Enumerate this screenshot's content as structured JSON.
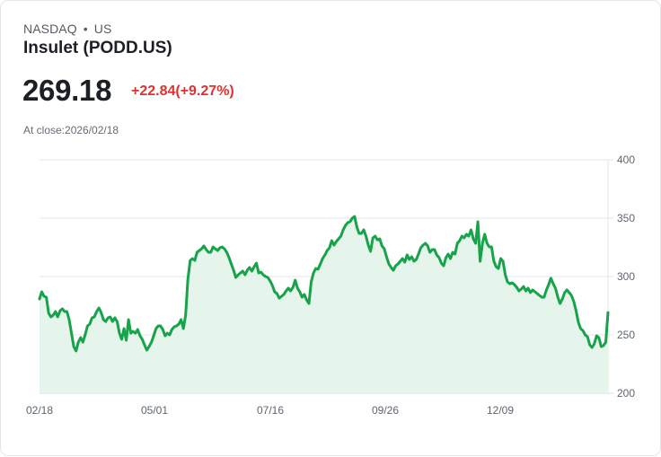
{
  "header": {
    "exchange": "NASDAQ",
    "separator": "•",
    "region": "US",
    "title": "Insulet (PODD.US)",
    "price": "269.18",
    "change": "+22.84(+9.27%)",
    "close_label": "At close:2026/02/18"
  },
  "colors": {
    "line": "#17a34a",
    "fill": "#e6f5ec",
    "change": "#e03131",
    "grid": "#e2e4e7"
  },
  "chart_data": {
    "type": "area",
    "title": "Insulet (PODD.US)",
    "xlabel": "",
    "ylabel": "",
    "ylim": [
      200,
      400
    ],
    "yticks": [
      200,
      250,
      300,
      350,
      400
    ],
    "xticks": [
      "02/18",
      "05/01",
      "07/16",
      "09/26",
      "12/09"
    ],
    "grid": true,
    "legend": "none",
    "values": [
      280.8,
      286.9,
      283.1,
      282.3,
      268.5,
      265.4,
      266.9,
      270,
      265.4,
      270.8,
      272.3,
      270,
      270,
      263.1,
      251.5,
      240,
      236.2,
      243.8,
      247.7,
      243.8,
      250,
      257.7,
      259.2,
      264.6,
      265.4,
      270,
      273.1,
      269.2,
      263.1,
      261.5,
      264.6,
      265.4,
      261.5,
      264.6,
      261.5,
      251.5,
      246.2,
      255.4,
      245.4,
      263.1,
      251.5,
      253.1,
      251.5,
      254.6,
      249.2,
      246.2,
      241.5,
      236.9,
      240,
      243.8,
      249.2,
      255.4,
      257.7,
      257.7,
      254.6,
      249.2,
      251.5,
      250,
      254.6,
      256.9,
      257.7,
      259.2,
      263.1,
      255.4,
      266.9,
      297.7,
      313.8,
      315.4,
      313.8,
      320.8,
      322.3,
      323.8,
      326.2,
      323.1,
      320.8,
      320.8,
      325.4,
      323.8,
      322.3,
      324.6,
      325.4,
      323.8,
      320.8,
      316.2,
      310.8,
      305.4,
      299.2,
      301.5,
      303.1,
      304.6,
      301.5,
      305.4,
      307.7,
      304.6,
      308.5,
      311.5,
      303.1,
      303.8,
      301.5,
      300,
      299.2,
      296.2,
      292.3,
      286.9,
      285.4,
      281.5,
      283.1,
      284.6,
      287.7,
      290,
      287.7,
      290.8,
      296.9,
      290,
      286.9,
      282.3,
      284.6,
      280,
      276.9,
      295.4,
      303.1,
      306.9,
      306.2,
      310.8,
      315.4,
      318.5,
      322.3,
      324.6,
      330.8,
      326.9,
      330,
      332.3,
      334.6,
      340,
      343.8,
      346.2,
      346.9,
      350,
      351.5,
      342.3,
      336.9,
      336.9,
      340,
      334.6,
      326.9,
      321.5,
      333.1,
      334.6,
      331.5,
      332.3,
      326.2,
      323.8,
      316.9,
      310.8,
      307.7,
      305.4,
      309.2,
      310.8,
      313.1,
      315.4,
      312.3,
      318.5,
      314.6,
      316.9,
      313.1,
      314.6,
      319.2,
      324.6,
      326.9,
      328.5,
      326.2,
      320.8,
      323.1,
      323.1,
      318.5,
      316.2,
      311.5,
      309.2,
      316.2,
      319.2,
      315.4,
      320.8,
      319.2,
      328.5,
      330.8,
      334.6,
      333.1,
      336.2,
      334.6,
      340,
      332.3,
      328.5,
      346.9,
      313.1,
      328.5,
      336.2,
      328.5,
      325.4,
      325.4,
      313.1,
      308.5,
      306.9,
      315.4,
      313.1,
      301.5,
      295.4,
      293.8,
      294.6,
      293.1,
      290.8,
      287.7,
      289.2,
      291.5,
      287.7,
      290,
      286.2,
      288.5,
      286.9,
      285.4,
      283.8,
      282.3,
      282.3,
      288.5,
      293.1,
      298.5,
      293.8,
      290,
      282.3,
      276.9,
      280.8,
      286.2,
      288.5,
      286.2,
      283.8,
      278.5,
      270.8,
      260.8,
      255.4,
      253.8,
      250,
      248.5,
      241.5,
      239.2,
      242.3,
      249.2,
      247.7,
      240,
      240.8,
      243.8,
      269.18
    ]
  }
}
